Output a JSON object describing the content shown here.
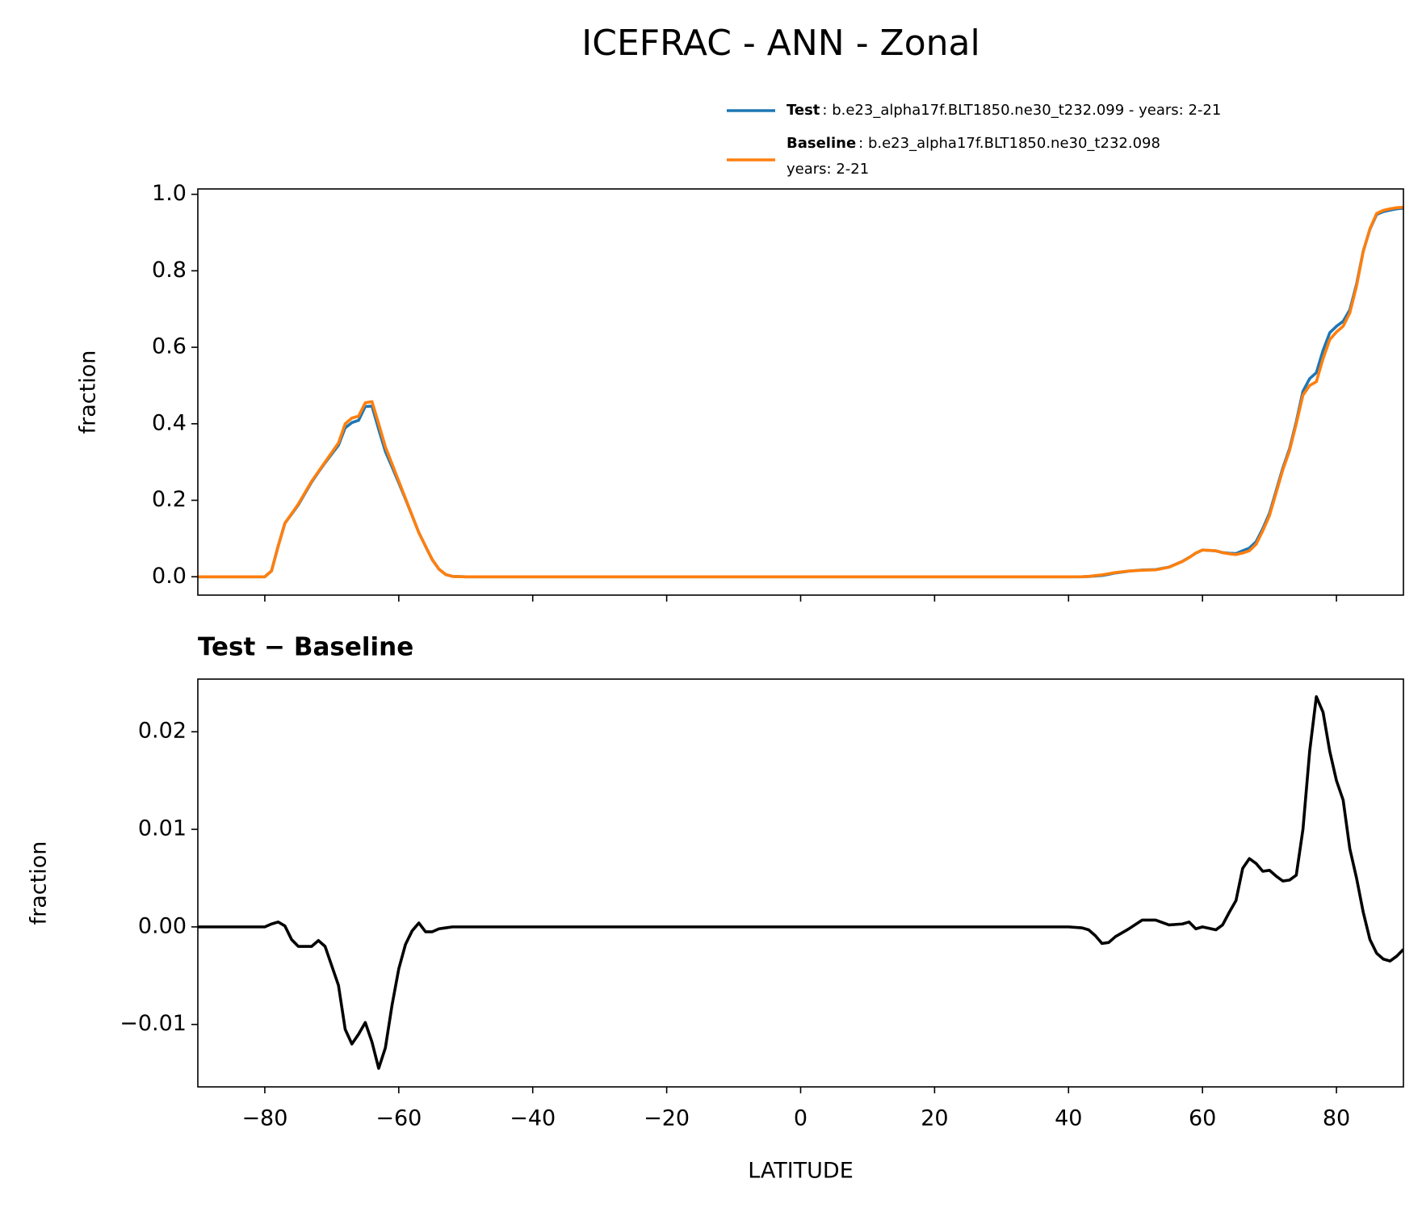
{
  "chart_data": [
    {
      "type": "line",
      "title": "ICEFRAC - ANN - Zonal",
      "ylabel": "fraction",
      "x": [
        -90,
        -85,
        -80,
        -79,
        -78,
        -77,
        -76,
        -75,
        -73,
        -72,
        -71,
        -69,
        -68,
        -67,
        -66,
        -65,
        -64,
        -63,
        -62,
        -61,
        -60,
        -59,
        -58,
        -57,
        -56,
        -55,
        -54,
        -53,
        -52,
        -50,
        -40,
        -20,
        0,
        20,
        40,
        42,
        43,
        44,
        45,
        46,
        47,
        49,
        51,
        53,
        55,
        57,
        58,
        59,
        60,
        62,
        63,
        64,
        65,
        66,
        67,
        68,
        69,
        70,
        71,
        72,
        73,
        74,
        75,
        76,
        77,
        78,
        79,
        80,
        81,
        82,
        83,
        84,
        85,
        86,
        87,
        88,
        89,
        90
      ],
      "series": [
        {
          "name": "Test",
          "description": [
            ": b.e23_alpha17f.BLT1850.ne30_t232.099 - years: 2-21"
          ],
          "color": "#1f77b4",
          "values": [
            0,
            0,
            0,
            0.0153,
            0.0805,
            0.1401,
            0.1637,
            0.188,
            0.248,
            0.2736,
            0.298,
            0.344,
            0.3895,
            0.403,
            0.409,
            0.4452,
            0.4462,
            0.3855,
            0.3276,
            0.287,
            0.2457,
            0.2032,
            0.1596,
            0.1154,
            0.0795,
            0.0445,
            0.0198,
            0.0059,
            0.001,
            0,
            0,
            0,
            0,
            0,
            0,
            0,
            0.0007,
            0.0021,
            0.0033,
            0.0064,
            0.01,
            0.0148,
            0.0177,
            0.0187,
            0.0252,
            0.0403,
            0.0505,
            0.0618,
            0.07,
            0.0677,
            0.0632,
            0.0615,
            0.0607,
            0.068,
            0.075,
            0.0915,
            0.1257,
            0.1658,
            0.2252,
            0.2847,
            0.3348,
            0.4053,
            0.485,
            0.518,
            0.5336,
            0.592,
            0.638,
            0.655,
            0.668,
            0.698,
            0.765,
            0.8515,
            0.9087,
            0.9473,
            0.9547,
            0.9585,
            0.962,
            0.9637
          ]
        },
        {
          "name": "Baseline",
          "description": [
            ": b.e23_alpha17f.BLT1850.ne30_t232.098",
            "years: 2-21"
          ],
          "color": "#ff7f0e",
          "values": [
            0,
            0,
            0,
            0.015,
            0.08,
            0.14,
            0.165,
            0.19,
            0.25,
            0.275,
            0.3,
            0.35,
            0.4,
            0.415,
            0.42,
            0.455,
            0.458,
            0.4,
            0.34,
            0.295,
            0.25,
            0.205,
            0.16,
            0.115,
            0.08,
            0.045,
            0.02,
            0.006,
            0.001,
            0,
            0,
            0,
            0,
            0,
            0,
            0.0001,
            0.001,
            0.003,
            0.005,
            0.008,
            0.011,
            0.015,
            0.017,
            0.018,
            0.025,
            0.04,
            0.05,
            0.062,
            0.07,
            0.068,
            0.063,
            0.06,
            0.058,
            0.062,
            0.068,
            0.085,
            0.12,
            0.16,
            0.22,
            0.28,
            0.33,
            0.4,
            0.475,
            0.5,
            0.51,
            0.57,
            0.62,
            0.64,
            0.655,
            0.69,
            0.76,
            0.85,
            0.91,
            0.95,
            0.958,
            0.962,
            0.965,
            0.966
          ]
        }
      ],
      "xlim": [
        -90,
        90
      ],
      "xticks": [
        -80,
        -60,
        -40,
        -20,
        0,
        20,
        40,
        60,
        80
      ],
      "xtick_labels": false,
      "ylim": [
        -0.048,
        1.014
      ],
      "yticks": [
        {
          "value": 0,
          "label": "0.0"
        },
        0.2,
        0.4,
        0.6,
        0.8,
        {
          "value": 1,
          "label": "1.0"
        }
      ],
      "legend": "upper right"
    },
    {
      "type": "line",
      "title": "Test − Baseline",
      "xlabel": "LATITUDE",
      "ylabel": "fraction",
      "x": [
        -90,
        -85,
        -80,
        -79,
        -78,
        -77,
        -76,
        -75,
        -73,
        -72,
        -71,
        -69,
        -68,
        -67,
        -66,
        -65,
        -64,
        -63,
        -62,
        -61,
        -60,
        -59,
        -58,
        -57,
        -56,
        -55,
        -54,
        -53,
        -52,
        -50,
        -40,
        -20,
        0,
        20,
        40,
        42,
        43,
        44,
        45,
        46,
        47,
        49,
        51,
        53,
        55,
        57,
        58,
        59,
        60,
        62,
        63,
        64,
        65,
        66,
        67,
        68,
        69,
        70,
        71,
        72,
        73,
        74,
        75,
        76,
        77,
        78,
        79,
        80,
        81,
        82,
        83,
        84,
        85,
        86,
        87,
        88,
        89,
        90
      ],
      "series": [
        {
          "color": "#000000",
          "values": [
            0,
            0,
            0,
            0.0003,
            0.0005,
            0.0001,
            -0.0013,
            -0.002,
            -0.002,
            -0.0014,
            -0.002,
            -0.006,
            -0.0105,
            -0.012,
            -0.011,
            -0.0098,
            -0.0118,
            -0.0145,
            -0.0124,
            -0.008,
            -0.0043,
            -0.0018,
            -0.0004,
            0.0004,
            -0.0005,
            -0.0005,
            -0.0002,
            -0.0001,
            0,
            0,
            0,
            0,
            0,
            0,
            0,
            -0.0001,
            -0.0003,
            -0.0009,
            -0.0017,
            -0.0016,
            -0.001,
            -0.0002,
            0.0007,
            0.0007,
            0.0002,
            0.0003,
            0.0005,
            -0.0002,
            0,
            -0.0003,
            0.0002,
            0.0015,
            0.0027,
            0.006,
            0.007,
            0.0065,
            0.0057,
            0.0058,
            0.0052,
            0.0047,
            0.0048,
            0.0053,
            0.01,
            0.018,
            0.0236,
            0.022,
            0.018,
            0.015,
            0.013,
            0.008,
            0.005,
            0.0015,
            -0.0013,
            -0.0027,
            -0.0033,
            -0.0035,
            -0.003,
            -0.0023
          ]
        }
      ],
      "xlim": [
        -90,
        90
      ],
      "xticks": [
        {
          "value": -80,
          "label": "−80"
        },
        {
          "value": -60,
          "label": "−60"
        },
        {
          "value": -40,
          "label": "−40"
        },
        {
          "value": -20,
          "label": "−20"
        },
        0,
        20,
        40,
        60,
        80
      ],
      "xtick_labels": true,
      "ylim": [
        -0.0164,
        0.0254
      ],
      "yticks": [
        {
          "value": -0.01,
          "label": "−0.01"
        },
        {
          "value": 0,
          "label": "0.00"
        },
        0.01,
        0.02
      ]
    }
  ]
}
